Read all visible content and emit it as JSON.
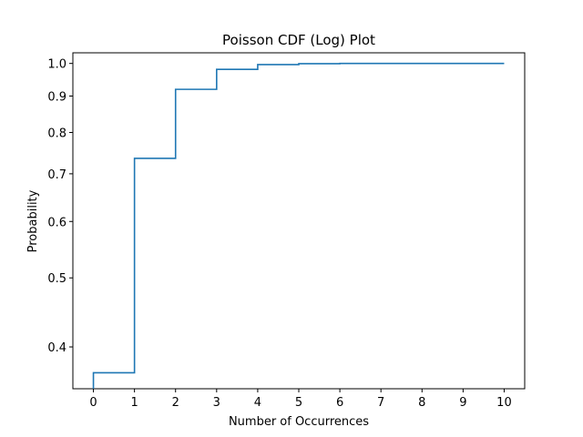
{
  "chart_data": {
    "type": "line",
    "drawstyle": "steps-post",
    "title": "Poisson CDF (Log) Plot",
    "xlabel": "Number of Occurrences",
    "ylabel": "Probability",
    "yscale": "log",
    "xlim": [
      -0.5,
      10.5
    ],
    "ylim": [
      0.3494,
      1.035
    ],
    "xticks": [
      0,
      1,
      2,
      3,
      4,
      5,
      6,
      7,
      8,
      9,
      10
    ],
    "xtick_labels": [
      "0",
      "1",
      "2",
      "3",
      "4",
      "5",
      "6",
      "7",
      "8",
      "9",
      "10"
    ],
    "yticks": [
      0.4,
      0.5,
      0.6,
      0.7,
      0.8,
      0.9,
      1.0
    ],
    "ytick_labels": [
      "0.4",
      "0.5",
      "0.6",
      "0.7",
      "0.8",
      "0.9",
      "1.0"
    ],
    "grid": false,
    "legend": "none",
    "color": "#1f77b4",
    "series": [
      {
        "x": [
          0,
          1,
          2,
          3,
          4,
          5,
          6,
          7,
          8,
          9,
          10
        ],
        "y": [
          0.3679,
          0.7358,
          0.9197,
          0.981,
          0.9963,
          0.9994,
          0.9999,
          1.0,
          1.0,
          1.0,
          1.0
        ]
      }
    ]
  }
}
